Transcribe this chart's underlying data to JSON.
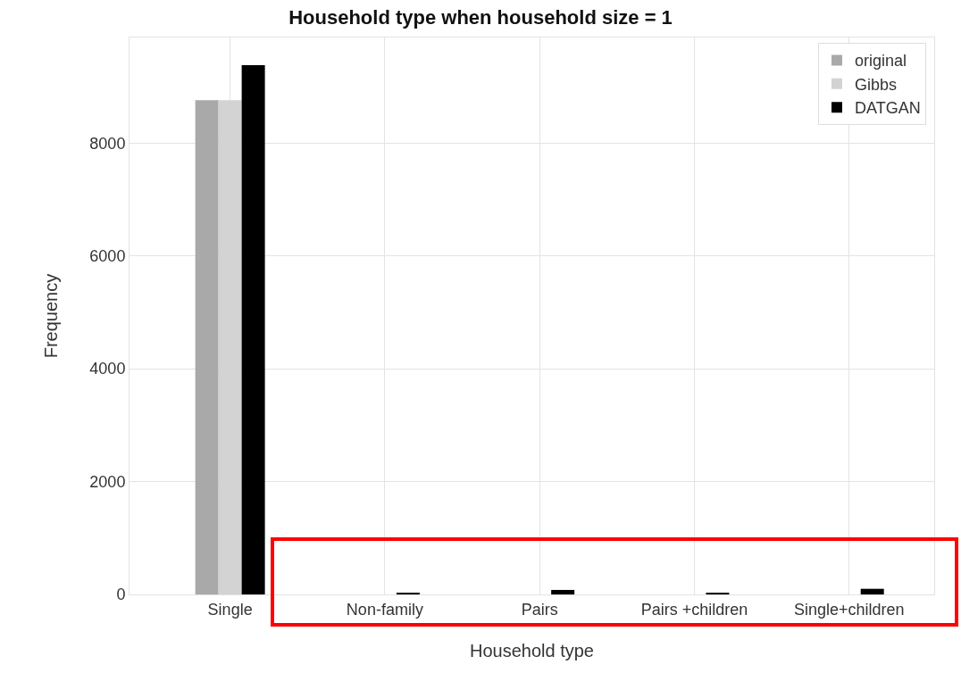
{
  "chart_data": {
    "type": "bar",
    "title": "Household type when household size = 1",
    "xlabel": "Household type",
    "ylabel": "Frequency",
    "categories": [
      "Single",
      "Non-family",
      "Pairs",
      "Pairs +children",
      "Single+children"
    ],
    "series": [
      {
        "name": "original",
        "color": "#a9a9a9",
        "values": [
          8760,
          0,
          0,
          0,
          0
        ]
      },
      {
        "name": "Gibbs",
        "color": "#d3d3d3",
        "values": [
          8760,
          0,
          0,
          0,
          0
        ]
      },
      {
        "name": "DATGAN",
        "color": "#000000",
        "values": [
          9380,
          30,
          80,
          30,
          100
        ]
      }
    ],
    "ylim": [
      0,
      9870
    ],
    "yticks": [
      0,
      2000,
      4000,
      6000,
      8000
    ],
    "grid": true,
    "legend": "top right"
  }
}
